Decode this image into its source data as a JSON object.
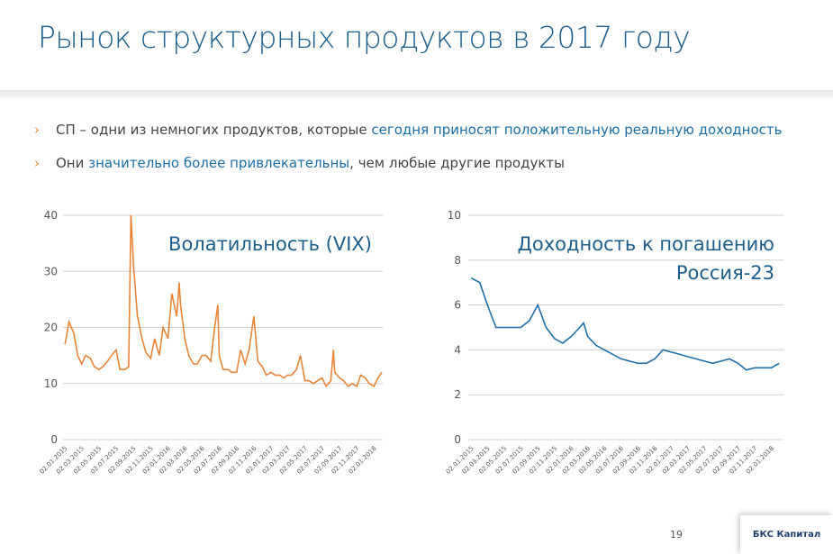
{
  "header": {
    "title": "Рынок структурных продуктов в 2017 году"
  },
  "bullets": [
    [
      "СП – одни из немногих продуктов, которые ",
      "сегодня приносят положительную реальную доходность"
    ],
    [
      "Они ",
      "значительно более привлекательны",
      ", чем любые другие продукты"
    ]
  ],
  "chart_data": [
    {
      "type": "line",
      "title": [
        "Волатильность (VIX)"
      ],
      "color": "#e8853a",
      "grid": true,
      "xlim": [
        "26.12.2014",
        "02.02.2018"
      ],
      "ylim": [
        0,
        40
      ],
      "yticks": [
        0,
        10,
        20,
        30,
        40
      ],
      "xticks": [
        "02.01.2015",
        "02.03.2015",
        "02.05.2015",
        "02.07.2015",
        "02.09.2015",
        "02.11.2015",
        "02.01.2016",
        "02.03.2016",
        "02.05.2016",
        "02.07.2016",
        "02.09.2016",
        "02.11.2016",
        "02.01.2017",
        "02.03.2017",
        "02.05.2017",
        "02.07.2017",
        "02.09.2017",
        "02.11.2017",
        "02.01.2018"
      ],
      "x": [
        "02.01.2015",
        "16.01.2015",
        "02.02.2015",
        "16.02.2015",
        "02.03.2015",
        "16.03.2015",
        "02.04.2015",
        "16.04.2015",
        "02.05.2015",
        "16.05.2015",
        "02.06.2015",
        "16.06.2015",
        "02.07.2015",
        "16.07.2015",
        "02.08.2015",
        "16.08.2015",
        "24.08.2015",
        "02.09.2015",
        "16.09.2015",
        "02.10.2015",
        "16.10.2015",
        "02.11.2015",
        "16.11.2015",
        "02.12.2015",
        "16.12.2015",
        "02.01.2016",
        "16.01.2016",
        "02.02.2016",
        "11.02.2016",
        "16.02.2016",
        "02.03.2016",
        "16.03.2016",
        "02.04.2016",
        "16.04.2016",
        "02.05.2016",
        "16.05.2016",
        "02.06.2016",
        "16.06.2016",
        "27.06.2016",
        "02.07.2016",
        "16.07.2016",
        "02.08.2016",
        "16.08.2016",
        "02.09.2016",
        "16.09.2016",
        "02.10.2016",
        "16.10.2016",
        "02.11.2016",
        "16.11.2016",
        "02.12.2016",
        "16.12.2016",
        "02.01.2017",
        "16.01.2017",
        "02.02.2017",
        "16.02.2017",
        "02.03.2017",
        "16.03.2017",
        "02.04.2017",
        "16.04.2017",
        "02.05.2017",
        "16.05.2017",
        "02.06.2017",
        "16.06.2017",
        "02.07.2017",
        "16.07.2017",
        "02.08.2017",
        "11.08.2017",
        "16.08.2017",
        "02.09.2017",
        "16.09.2017",
        "02.10.2017",
        "16.10.2017",
        "02.11.2017",
        "16.11.2017",
        "02.12.2017",
        "16.12.2017",
        "02.01.2018",
        "16.01.2018",
        "30.01.2018"
      ],
      "values": [
        17,
        21,
        19,
        15,
        13.5,
        15,
        14.5,
        13,
        12.5,
        13,
        14,
        15,
        16,
        12.5,
        12.5,
        13,
        40,
        31,
        22,
        18,
        15.5,
        14.5,
        18,
        15,
        20,
        18,
        26,
        22,
        28,
        24,
        18,
        15,
        13.5,
        13.5,
        15,
        15,
        14,
        20,
        24,
        15,
        12.5,
        12.5,
        12,
        12,
        16,
        13.5,
        16,
        22,
        14,
        13,
        11.5,
        12,
        11.5,
        11.5,
        11,
        11.5,
        11.5,
        12.5,
        15,
        10.5,
        10.5,
        10,
        10.5,
        11,
        9.5,
        10.5,
        16,
        12,
        11,
        10.5,
        9.5,
        10,
        9.5,
        11.5,
        11,
        10,
        9.5,
        11,
        12
      ]
    },
    {
      "type": "line",
      "title": [
        "Доходность к погашению",
        "Россия-23"
      ],
      "color": "#1f6ea8",
      "grid": true,
      "xlim": [
        "22.12.2014",
        "15.02.2018"
      ],
      "ylim": [
        0,
        10
      ],
      "yticks": [
        0,
        2,
        4,
        6,
        8,
        10
      ],
      "xticks": [
        "02.01.2015",
        "02.03.2015",
        "02.05.2015",
        "02.07.2015",
        "02.09.2015",
        "02.11.2015",
        "02.01.2016",
        "02.03.2016",
        "02.05.2016",
        "02.07.2016",
        "02.09.2016",
        "02.11.2016",
        "02.01.2017",
        "02.03.2017",
        "02.05.2017",
        "02.07.2017",
        "02.09.2017",
        "02.11.2017",
        "02.01.2018"
      ],
      "x": [
        "02.01.2015",
        "02.02.2015",
        "02.03.2015",
        "02.04.2015",
        "02.05.2015",
        "02.06.2015",
        "02.07.2015",
        "02.08.2015",
        "02.09.2015",
        "02.10.2015",
        "02.11.2015",
        "02.12.2015",
        "02.01.2016",
        "02.02.2016",
        "16.02.2016",
        "02.03.2016",
        "02.04.2016",
        "02.05.2016",
        "02.06.2016",
        "02.07.2016",
        "02.08.2016",
        "02.09.2016",
        "02.10.2016",
        "02.11.2016",
        "02.12.2016",
        "02.01.2017",
        "02.02.2017",
        "02.03.2017",
        "02.04.2017",
        "02.05.2017",
        "02.06.2017",
        "02.07.2017",
        "02.08.2017",
        "02.09.2017",
        "02.10.2017",
        "02.11.2017",
        "02.12.2017",
        "02.01.2018",
        "30.01.2018"
      ],
      "values": [
        7.2,
        7,
        6,
        5,
        5,
        5,
        5,
        5.3,
        6,
        5,
        4.5,
        4.3,
        4.6,
        5,
        5.2,
        4.6,
        4.2,
        4,
        3.8,
        3.6,
        3.5,
        3.4,
        3.4,
        3.6,
        4,
        3.9,
        3.8,
        3.7,
        3.6,
        3.5,
        3.4,
        3.5,
        3.6,
        3.4,
        3.1,
        3.2,
        3.2,
        3.2,
        3.4
      ]
    }
  ],
  "footer": {
    "page": "19",
    "logo": "БКС Капитал"
  }
}
